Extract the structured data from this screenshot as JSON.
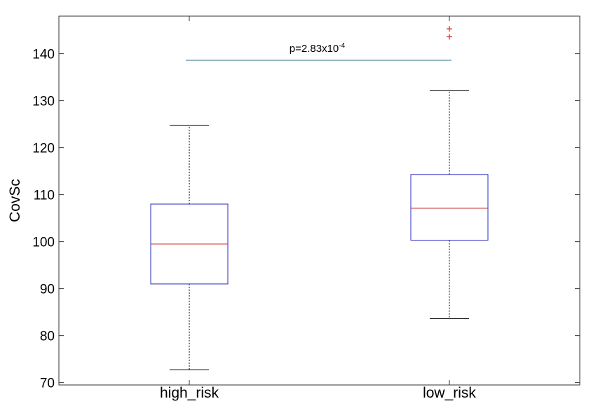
{
  "chart_data": {
    "type": "boxplot",
    "title": "",
    "xlabel": "",
    "ylabel": "CovSc",
    "ylim": [
      69.5,
      148
    ],
    "yticks": [
      70,
      80,
      90,
      100,
      110,
      120,
      130,
      140
    ],
    "grid": false,
    "categories": [
      "high_risk",
      "low_risk"
    ],
    "boxes": [
      {
        "category": "high_risk",
        "whisker_low": 72.7,
        "q1": 91.0,
        "median": 99.5,
        "q3": 108.0,
        "whisker_high": 124.8,
        "outliers": []
      },
      {
        "category": "low_risk",
        "whisker_low": 83.6,
        "q1": 100.3,
        "median": 107.1,
        "q3": 114.3,
        "whisker_high": 132.1,
        "outliers": [
          143.6,
          145.3
        ]
      }
    ],
    "significance": {
      "y": 138.6,
      "from": "high_risk",
      "to": "low_risk",
      "base": "p=2.83x10",
      "exponent": "-4"
    },
    "colors": {
      "box": "#2b2bbf",
      "median": "#c83232",
      "whisker": "#000000",
      "outlier": "#d42020",
      "significance_line": "#2a6f8f"
    }
  }
}
